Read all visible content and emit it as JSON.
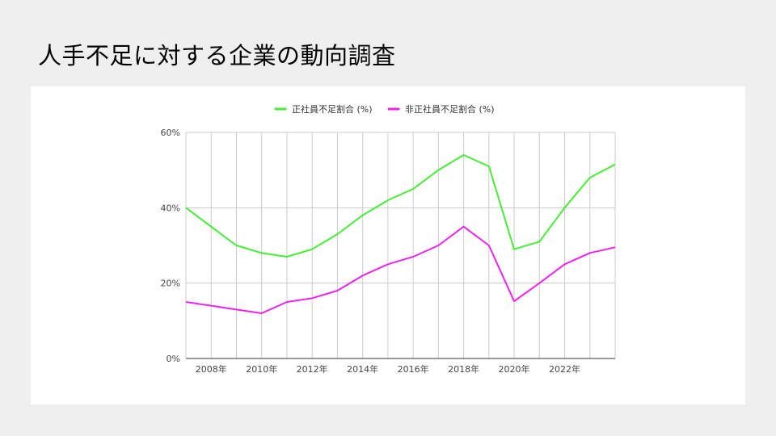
{
  "slide": {
    "title": "人手不足に対する企業の動向調査"
  },
  "chart_data": {
    "type": "line",
    "x": [
      2007,
      2008,
      2009,
      2010,
      2011,
      2012,
      2013,
      2014,
      2015,
      2016,
      2017,
      2018,
      2019,
      2020,
      2021,
      2022,
      2023,
      2024
    ],
    "series": [
      {
        "name": "正社員不足割合 (%)",
        "color": "#44ee33",
        "values": [
          40,
          35,
          30,
          28,
          27,
          29,
          33,
          38,
          42,
          45,
          50,
          54,
          51,
          29,
          31,
          40,
          48,
          51.5
        ]
      },
      {
        "name": "非正社員不足割合 (%)",
        "color": "#ee22ee",
        "values": [
          15,
          14,
          13,
          12,
          15,
          16,
          18,
          22,
          25,
          27,
          30,
          35,
          30,
          15.2,
          20,
          25,
          28,
          29.5
        ]
      }
    ],
    "xlim": [
      2007,
      2024
    ],
    "ylim": [
      0,
      60
    ],
    "y_ticks": [
      "0%",
      "20%",
      "40%",
      "60%"
    ],
    "y_tick_values": [
      0,
      20,
      40,
      60
    ],
    "x_tick_values": [
      2008,
      2010,
      2012,
      2014,
      2016,
      2018,
      2020,
      2022
    ],
    "x_ticks": [
      "2008年",
      "2010年",
      "2012年",
      "2014年",
      "2016年",
      "2018年",
      "2020年",
      "2022年"
    ],
    "legend_position": "top",
    "grid": true
  }
}
